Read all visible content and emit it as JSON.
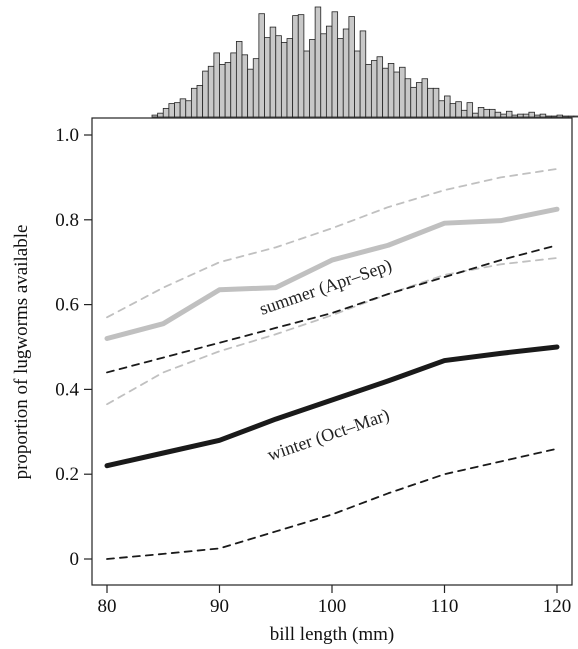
{
  "chart_data": {
    "type": "line",
    "xlabel": "bill length (mm)",
    "ylabel": "proportion of lugworms available",
    "xlim": [
      77,
      122
    ],
    "ylim": [
      -0.04,
      1.05
    ],
    "x_ticks": [
      80,
      90,
      100,
      110,
      120
    ],
    "x_tick_labels": [
      "80",
      "90",
      "100",
      "110",
      "120"
    ],
    "y_ticks": [
      0,
      0.2,
      0.4,
      0.6,
      0.8,
      1.0
    ],
    "y_tick_labels": [
      "0",
      "0.2",
      "0.4",
      "0.6",
      "0.8",
      "1.0"
    ],
    "grid": false,
    "x": [
      80,
      85,
      90,
      95,
      100,
      105,
      110,
      115,
      120
    ],
    "series": [
      {
        "name": "summer (Apr–Sep)",
        "role": "estimate",
        "color": "#c0c0c0",
        "values": [
          0.52,
          0.555,
          0.635,
          0.64,
          0.705,
          0.74,
          0.792,
          0.798,
          0.825
        ]
      },
      {
        "role": "upper-bound",
        "color": "#c0c0c0",
        "values": [
          0.57,
          0.64,
          0.7,
          0.735,
          0.78,
          0.83,
          0.87,
          0.9,
          0.92
        ]
      },
      {
        "role": "lower-bound",
        "color": "#c0c0c0",
        "values": [
          0.365,
          0.44,
          0.49,
          0.53,
          0.575,
          0.625,
          0.67,
          0.695,
          0.71
        ]
      },
      {
        "name": "winter (Oct–Mar)",
        "role": "estimate",
        "color": "#1a1a1a",
        "values": [
          0.22,
          0.25,
          0.28,
          0.33,
          0.375,
          0.42,
          0.468,
          0.485,
          0.5
        ]
      },
      {
        "role": "upper-bound",
        "color": "#1a1a1a",
        "values": [
          0.44,
          0.475,
          0.51,
          0.545,
          0.58,
          0.625,
          0.665,
          0.705,
          0.74
        ]
      },
      {
        "role": "lower-bound",
        "color": "#1a1a1a",
        "values": [
          0.0,
          0.012,
          0.025,
          0.065,
          0.105,
          0.155,
          0.2,
          0.23,
          0.26
        ]
      }
    ],
    "histogram": {
      "type": "bar",
      "variable": "bill length (mm)",
      "bin_width": 0.5,
      "bin_start": 84,
      "bar_color": "#c8c8c8",
      "counts": [
        2,
        4,
        9,
        14,
        15,
        19,
        17,
        30,
        33,
        48,
        53,
        67,
        55,
        57,
        67,
        79,
        65,
        50,
        61,
        108,
        83,
        94,
        85,
        78,
        82,
        106,
        107,
        69,
        81,
        115,
        87,
        95,
        110,
        82,
        92,
        105,
        69,
        90,
        55,
        59,
        63,
        51,
        56,
        47,
        52,
        40,
        31,
        36,
        40,
        30,
        30,
        17,
        22,
        14,
        16,
        7,
        15,
        4,
        10,
        8,
        8,
        5,
        3,
        6,
        2,
        3,
        3,
        5,
        2,
        3,
        1,
        1,
        2,
        1,
        1,
        1,
        1
      ]
    }
  }
}
